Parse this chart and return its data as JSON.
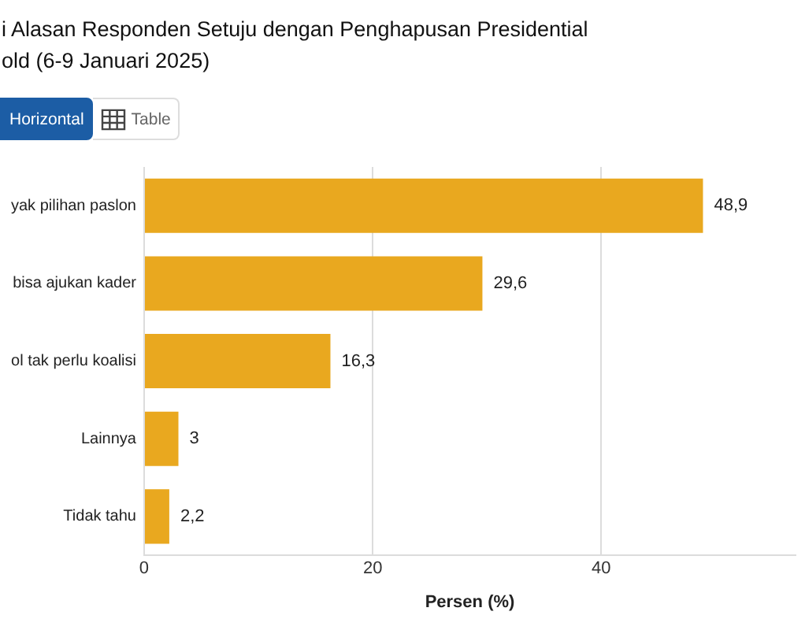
{
  "chart_data": {
    "type": "bar",
    "orientation": "horizontal",
    "title": "i Alasan Responden Setuju dengan Penghapusan Presidential old (6-9 Januari 2025)",
    "categories": [
      "yak pilihan paslon",
      "bisa ajukan kader",
      "ol tak perlu koalisi",
      "Lainnya",
      "Tidak tahu"
    ],
    "values": [
      48.9,
      29.6,
      16.3,
      3,
      2.2
    ],
    "value_labels": [
      "48,9",
      "29,6",
      "16,3",
      "3",
      "2,2"
    ],
    "color": "#e9a81f",
    "xlabel": "Persen (%)",
    "xlim": [
      0,
      57
    ],
    "xticks": [
      0,
      20,
      40
    ],
    "grid": "x",
    "annotations": [
      "Horizontal",
      "Table"
    ]
  }
}
